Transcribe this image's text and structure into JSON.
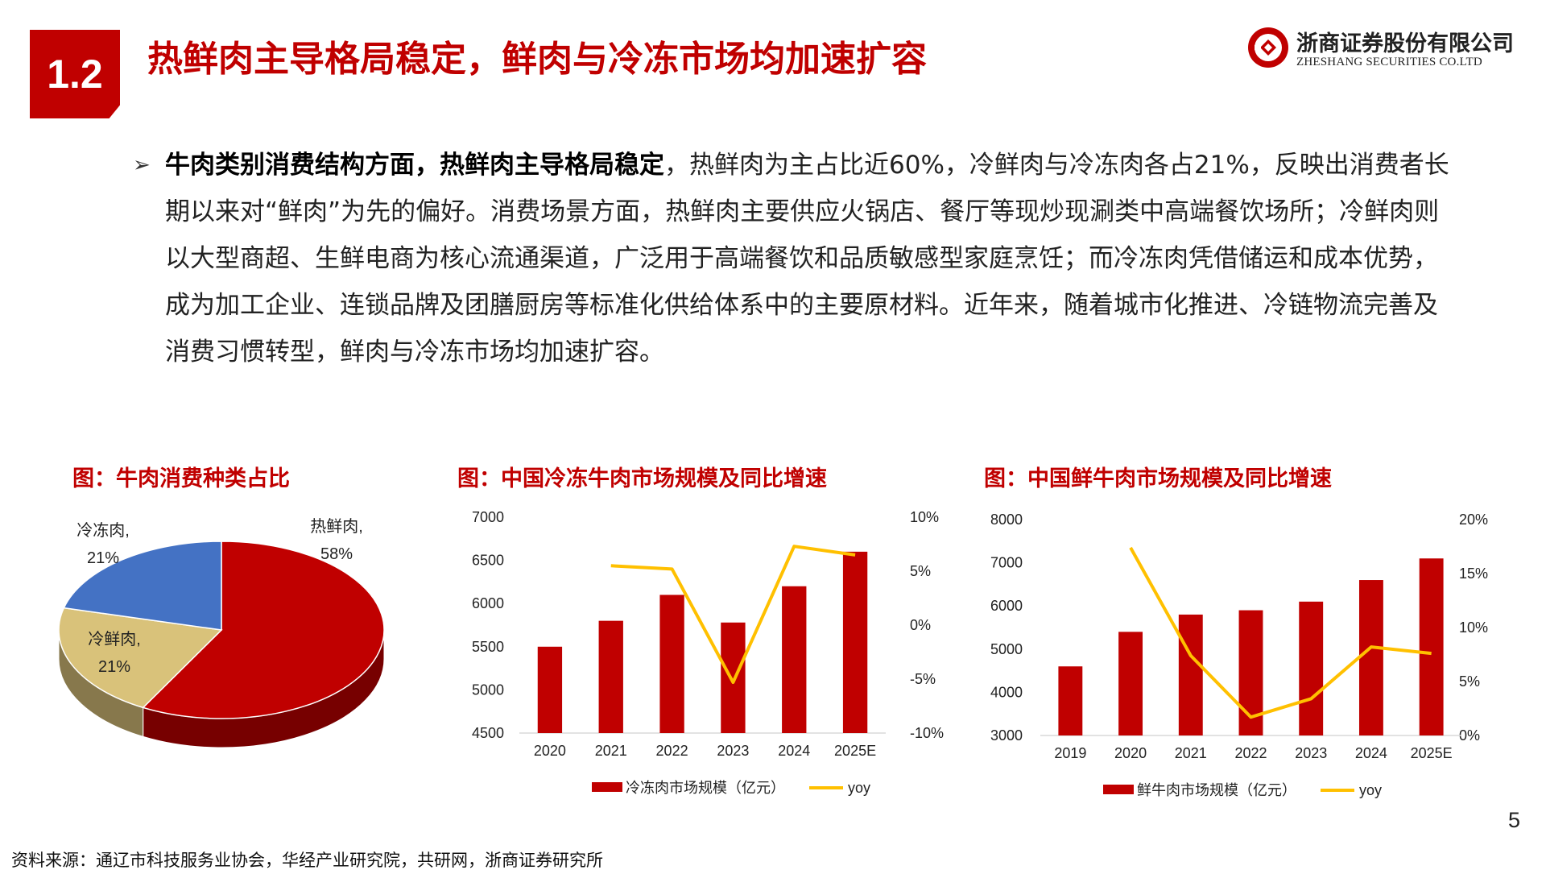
{
  "header": {
    "section_number": "1.2",
    "title": "热鲜肉主导格局稳定，鲜肉与冷冻市场均加速扩容",
    "logo_cn": "浙商证券股份有限公司",
    "logo_en": "ZHESHANG SECURITIES CO.LTD"
  },
  "body": {
    "bullet": "➢",
    "bold_lead": "牛肉类别消费结构方面，热鲜肉主导格局稳定",
    "text": "，热鲜肉为主占比近60%，冷鲜肉与冷冻肉各占21%，反映出消费者长期以来对“鲜肉”为先的偏好。消费场景方面，热鲜肉主要供应火锅店、餐厅等现炒现涮类中高端餐饮场所；冷鲜肉则以大型商超、生鲜电商为核心流通渠道，广泛用于高端餐饮和品质敏感型家庭烹饪；而冷冻肉凭借储运和成本优势，成为加工企业、连锁品牌及团膳厨房等标准化供给体系中的主要原材料。近年来，随着城市化推进、冷链物流完善及消费习惯转型，鲜肉与冷冻市场均加速扩容。"
  },
  "charts": {
    "pie_title": "图：牛肉消费种类占比",
    "frozen_title": "图：中国冷冻牛肉市场规模及同比增速",
    "fresh_title": "图：中国鲜牛肉市场规模及同比增速"
  },
  "chart_data": [
    {
      "type": "pie",
      "title": "图：牛肉消费种类占比",
      "slices": [
        {
          "name": "热鲜肉",
          "label": "58%",
          "value": 58,
          "color": "#c00000"
        },
        {
          "name": "冷鲜肉",
          "label": "21%",
          "value": 21,
          "color": "#d9c27a"
        },
        {
          "name": "冷冻肉",
          "label": "21%",
          "value": 21,
          "color": "#4472c4"
        }
      ]
    },
    {
      "type": "bar",
      "title": "图：中国冷冻牛肉市场规模及同比增速",
      "categories": [
        "2020",
        "2021",
        "2022",
        "2023",
        "2024",
        "2025E"
      ],
      "series": [
        {
          "name": "冷冻肉市场规模（亿元）",
          "type": "bar",
          "axis": "left",
          "color": "#c00000",
          "values": [
            5500,
            5800,
            6100,
            5780,
            6200,
            6600
          ]
        },
        {
          "name": "yoy",
          "type": "line",
          "axis": "right",
          "color": "#ffc000",
          "values": [
            null,
            5.5,
            5.2,
            -5.3,
            7.3,
            6.5
          ]
        }
      ],
      "y_left": {
        "min": 4500,
        "max": 7000,
        "ticks": [
          "4500",
          "5000",
          "5500",
          "6000",
          "6500",
          "7000"
        ]
      },
      "y_right": {
        "min": -10,
        "max": 10,
        "ticks": [
          "-10%",
          "-5%",
          "0%",
          "5%",
          "10%"
        ]
      },
      "legend": "bottom"
    },
    {
      "type": "bar",
      "title": "图：中国鲜牛肉市场规模及同比增速",
      "categories": [
        "2019",
        "2020",
        "2021",
        "2022",
        "2023",
        "2024",
        "2025E"
      ],
      "series": [
        {
          "name": "鲜牛肉市场规模（亿元）",
          "type": "bar",
          "axis": "left",
          "color": "#c00000",
          "values": [
            4600,
            5400,
            5800,
            5900,
            6100,
            6600,
            7100
          ]
        },
        {
          "name": "yoy",
          "type": "line",
          "axis": "right",
          "color": "#ffc000",
          "values": [
            null,
            17.4,
            7.4,
            1.7,
            3.4,
            8.2,
            7.6
          ]
        }
      ],
      "y_left": {
        "min": 3000,
        "max": 8000,
        "ticks": [
          "3000",
          "4000",
          "5000",
          "6000",
          "7000",
          "8000"
        ]
      },
      "y_right": {
        "min": 0,
        "max": 20,
        "ticks": [
          "0%",
          "5%",
          "10%",
          "15%",
          "20%"
        ]
      },
      "legend": "bottom"
    }
  ],
  "footer": {
    "source": "资料来源：通辽市科技服务业协会，华经产业研究院，共研网，浙商证券研究所",
    "page_number": "5"
  },
  "colors": {
    "brand_red": "#c00000",
    "line_yellow": "#ffc000"
  }
}
